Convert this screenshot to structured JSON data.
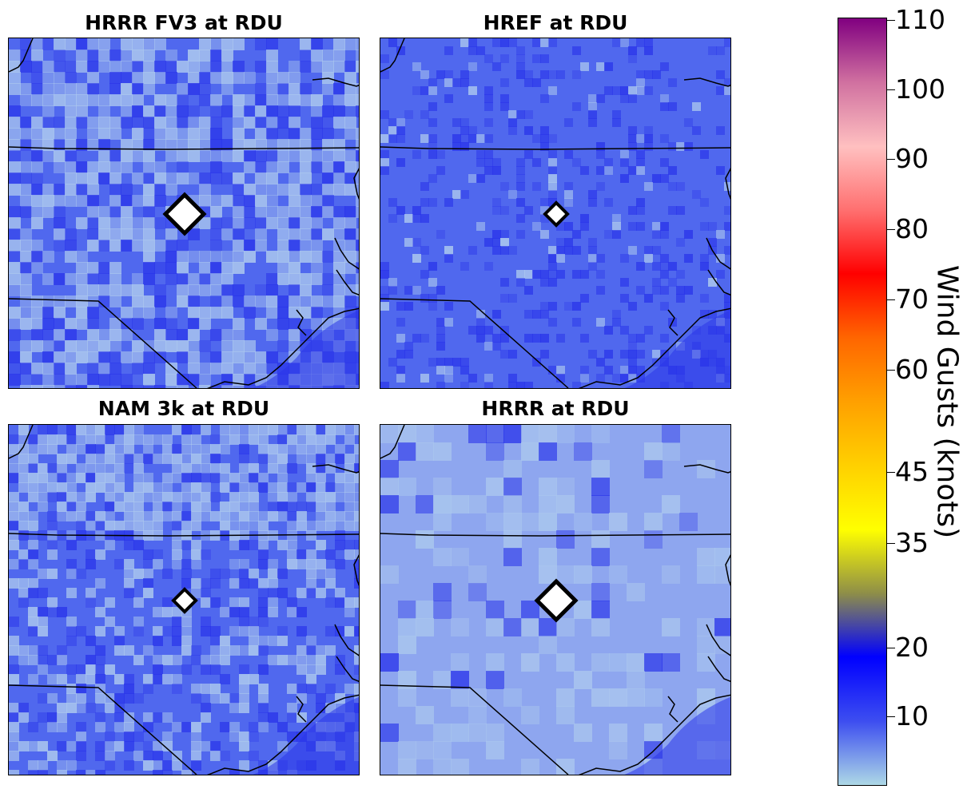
{
  "panels": [
    {
      "title": "HRRR FV3 at RDU",
      "field": "patchy-light",
      "station_marker": "large"
    },
    {
      "title": "HREF at RDU",
      "field": "uniform-medium",
      "station_marker": "normal"
    },
    {
      "title": "NAM 3k at RDU",
      "field": "streaky-north",
      "station_marker": "normal"
    },
    {
      "title": "HRRR at RDU",
      "field": "smooth-light",
      "station_marker": "large"
    }
  ],
  "colorbar": {
    "label": "Wind Gusts (knots)",
    "range": [
      0,
      110
    ],
    "ticks": [
      "10",
      "20",
      "35",
      "45",
      "60",
      "70",
      "80",
      "90",
      "100",
      "110"
    ],
    "colors": [
      "#add8e6",
      "#3d4ef0",
      "#0000ff",
      "#8e8e48",
      "#ffff00",
      "#ffd000",
      "#ffa000",
      "#ff6600",
      "#ff0000",
      "#ff7070",
      "#ffc0c0",
      "#d070a0",
      "#800080"
    ]
  },
  "map_colors": {
    "land_light": "#a9c5ee",
    "land_base": "#5068ee",
    "land_dark": "#2a35ea",
    "boundary": "#000000",
    "marker_fill": "#ffffff"
  }
}
